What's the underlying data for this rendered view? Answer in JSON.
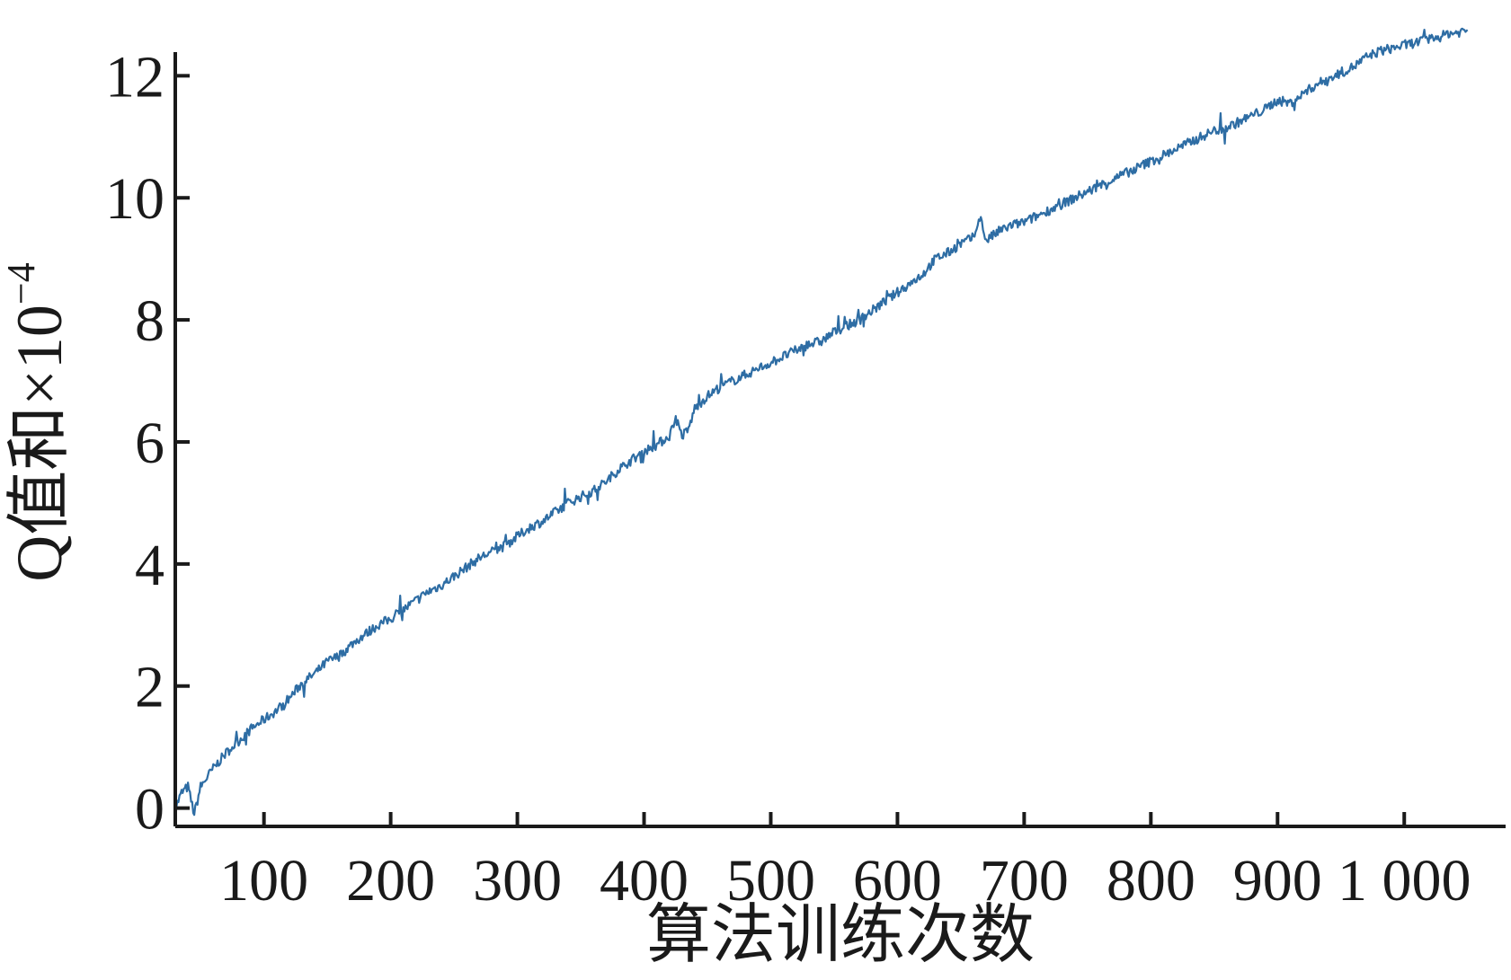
{
  "chart_data": {
    "type": "line",
    "xlabel": "算法训练次数",
    "ylabel": "Q值和×10",
    "ylabel_exponent": "−4",
    "xlim": [
      30,
      1080
    ],
    "ylim": [
      -0.3,
      12.8
    ],
    "xticks": [
      100,
      200,
      300,
      400,
      500,
      600,
      700,
      800,
      900,
      1000
    ],
    "xtick_labels": [
      "100",
      "200",
      "300",
      "400",
      "500",
      "600",
      "700",
      "800",
      "900",
      "1 000"
    ],
    "yticks": [
      0,
      2,
      4,
      6,
      8,
      10,
      12
    ],
    "ytick_labels": [
      "0",
      "2",
      "4",
      "6",
      "8",
      "10",
      "12"
    ],
    "grid": false,
    "line_color": "#2e6da4",
    "series": [
      {
        "x": [
          30,
          35,
          40,
          45,
          50,
          60,
          70,
          80,
          90,
          100,
          110,
          120,
          130,
          140,
          150,
          160,
          170,
          180,
          190,
          200,
          210,
          220,
          230,
          240,
          250,
          260,
          270,
          280,
          290,
          300,
          310,
          320,
          330,
          340,
          350,
          360,
          370,
          380,
          390,
          400,
          410,
          420,
          425,
          430,
          435,
          440,
          450,
          460,
          470,
          480,
          490,
          500,
          510,
          520,
          530,
          540,
          550,
          560,
          570,
          580,
          590,
          600,
          610,
          620,
          630,
          640,
          650,
          660,
          665,
          670,
          680,
          690,
          700,
          710,
          720,
          730,
          740,
          750,
          760,
          770,
          780,
          790,
          800,
          810,
          820,
          830,
          840,
          850,
          860,
          870,
          880,
          890,
          900,
          910,
          920,
          930,
          940,
          950,
          960,
          970,
          980,
          990,
          1000,
          1010,
          1020,
          1030,
          1035,
          1040,
          1050
        ],
        "y": [
          0.0,
          0.25,
          0.35,
          -0.1,
          0.35,
          0.65,
          0.9,
          1.1,
          1.3,
          1.45,
          1.6,
          1.8,
          2.05,
          2.2,
          2.4,
          2.5,
          2.7,
          2.85,
          3.0,
          3.1,
          3.25,
          3.4,
          3.55,
          3.65,
          3.8,
          3.95,
          4.1,
          4.2,
          4.3,
          4.45,
          4.6,
          4.7,
          4.85,
          5.0,
          5.1,
          5.2,
          5.35,
          5.55,
          5.7,
          5.85,
          5.95,
          6.1,
          6.4,
          6.1,
          6.2,
          6.55,
          6.75,
          6.9,
          7.0,
          7.1,
          7.2,
          7.3,
          7.4,
          7.5,
          7.6,
          7.65,
          7.8,
          7.9,
          8.0,
          8.15,
          8.3,
          8.45,
          8.6,
          8.75,
          9.0,
          9.1,
          9.25,
          9.35,
          9.7,
          9.3,
          9.45,
          9.55,
          9.6,
          9.7,
          9.8,
          9.9,
          10.0,
          10.1,
          10.2,
          10.3,
          10.4,
          10.5,
          10.6,
          10.7,
          10.8,
          10.9,
          11.0,
          11.1,
          11.15,
          11.25,
          11.35,
          11.45,
          11.6,
          11.55,
          11.7,
          11.85,
          11.95,
          12.05,
          12.15,
          12.3,
          12.4,
          12.45,
          12.5,
          12.55,
          12.6,
          12.65,
          12.7,
          12.7,
          12.75
        ]
      }
    ]
  }
}
